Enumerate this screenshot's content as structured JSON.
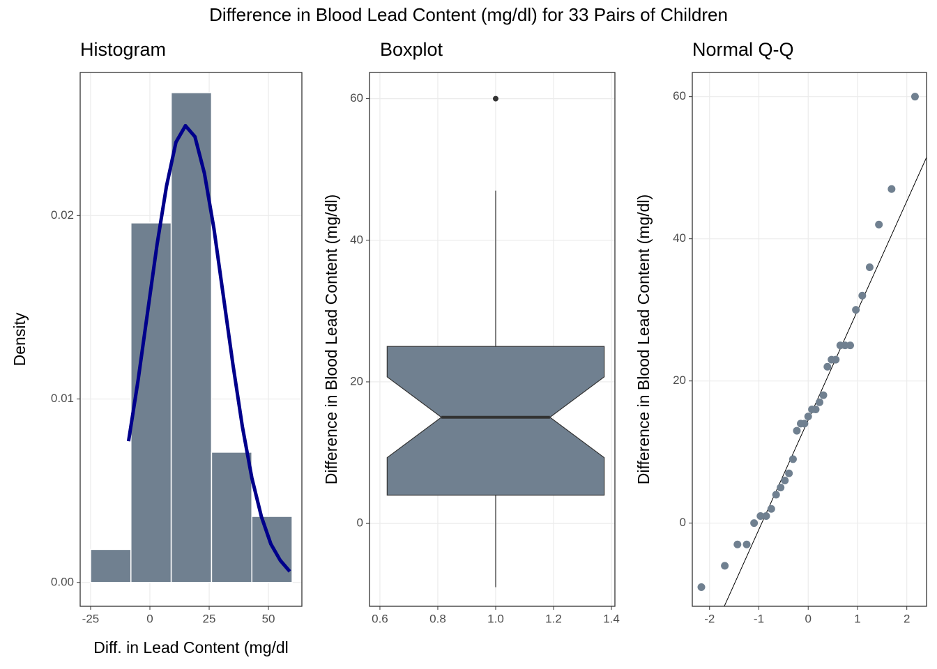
{
  "title": "Difference in Blood Lead Content (mg/dl) for 33 Pairs of Children",
  "chart_data": [
    {
      "type": "histogram",
      "title": "Histogram",
      "x_label": "Diff. in Lead Content (mg/dl",
      "y_label": "Density",
      "bins": [
        -25,
        -8,
        9,
        26,
        43,
        60
      ],
      "values": [
        0.0018,
        0.0196,
        0.0267,
        0.0071,
        0.0036
      ],
      "color": "#708090",
      "edge_color": "#ffffff",
      "density_curve": {
        "color": "#00008b",
        "x": [
          -9,
          -5,
          -1,
          3,
          7,
          11,
          15,
          19,
          23,
          27,
          31,
          35,
          39,
          43,
          47,
          51,
          55,
          59
        ],
        "values": [
          0.0077,
          0.011,
          0.0147,
          0.0184,
          0.0216,
          0.024,
          0.0249,
          0.0243,
          0.0223,
          0.0193,
          0.0156,
          0.0119,
          0.0085,
          0.0057,
          0.0036,
          0.0021,
          0.0012,
          0.0006
        ]
      },
      "xlim": [
        -29.4,
        64.1
      ],
      "ylim": [
        -0.0013,
        0.0278
      ],
      "xticks": [
        -25,
        0,
        25,
        50
      ],
      "yticks": [
        {
          "value": 0,
          "label": "0.00"
        },
        0.01,
        0.02
      ],
      "grid": true
    },
    {
      "type": "boxplot",
      "title": "Boxplot",
      "y_label": "Difference in Blood Lead Content (mg/dl)",
      "color": "#708090",
      "edge_color": "#333333",
      "boxes": [
        {
          "x": 1,
          "width": 0.75,
          "whisker_low": -9,
          "q1": 4,
          "notch_low": 9.3,
          "median": 15,
          "notch_high": 20.7,
          "q3": 25,
          "whisker_high": 47,
          "outliers": [
            60
          ]
        }
      ],
      "xlim": [
        0.564,
        1.412
      ],
      "ylim": [
        -11.7,
        63.7
      ],
      "xticks": [
        0.6,
        0.8,
        {
          "value": 1,
          "label": "1.0"
        },
        1.2,
        1.4
      ],
      "yticks": [
        0,
        20,
        40,
        60
      ],
      "grid": true
    },
    {
      "type": "qq",
      "title": "Normal Q-Q",
      "y_label": "Difference in Blood Lead Content (mg/dl)",
      "color": "#708090",
      "x": [
        -2.166,
        -1.691,
        -1.434,
        -1.247,
        -1.097,
        -0.967,
        -0.852,
        -0.748,
        -0.651,
        -0.559,
        -0.473,
        -0.39,
        -0.308,
        -0.23,
        -0.152,
        -0.076,
        0,
        0.076,
        0.152,
        0.23,
        0.308,
        0.39,
        0.473,
        0.559,
        0.651,
        0.748,
        0.852,
        0.967,
        1.097,
        1.247,
        1.434,
        1.691,
        2.166
      ],
      "values": [
        -9,
        -6,
        -3,
        -3,
        0,
        1,
        1,
        2,
        4,
        5,
        6,
        7,
        9,
        13,
        14,
        14,
        15,
        16,
        16,
        17,
        18,
        22,
        23,
        23,
        25,
        25,
        25,
        30,
        32,
        36,
        42,
        47,
        60
      ],
      "reference_line": {
        "slope": 15.4,
        "intercept": 14.5,
        "color": "#000000"
      },
      "xlim": [
        -2.35,
        2.4
      ],
      "ylim": [
        -11.7,
        63.4
      ],
      "xticks": [
        -2,
        -1,
        0,
        1,
        2
      ],
      "yticks": [
        0,
        20,
        40,
        60
      ],
      "grid": true
    }
  ]
}
